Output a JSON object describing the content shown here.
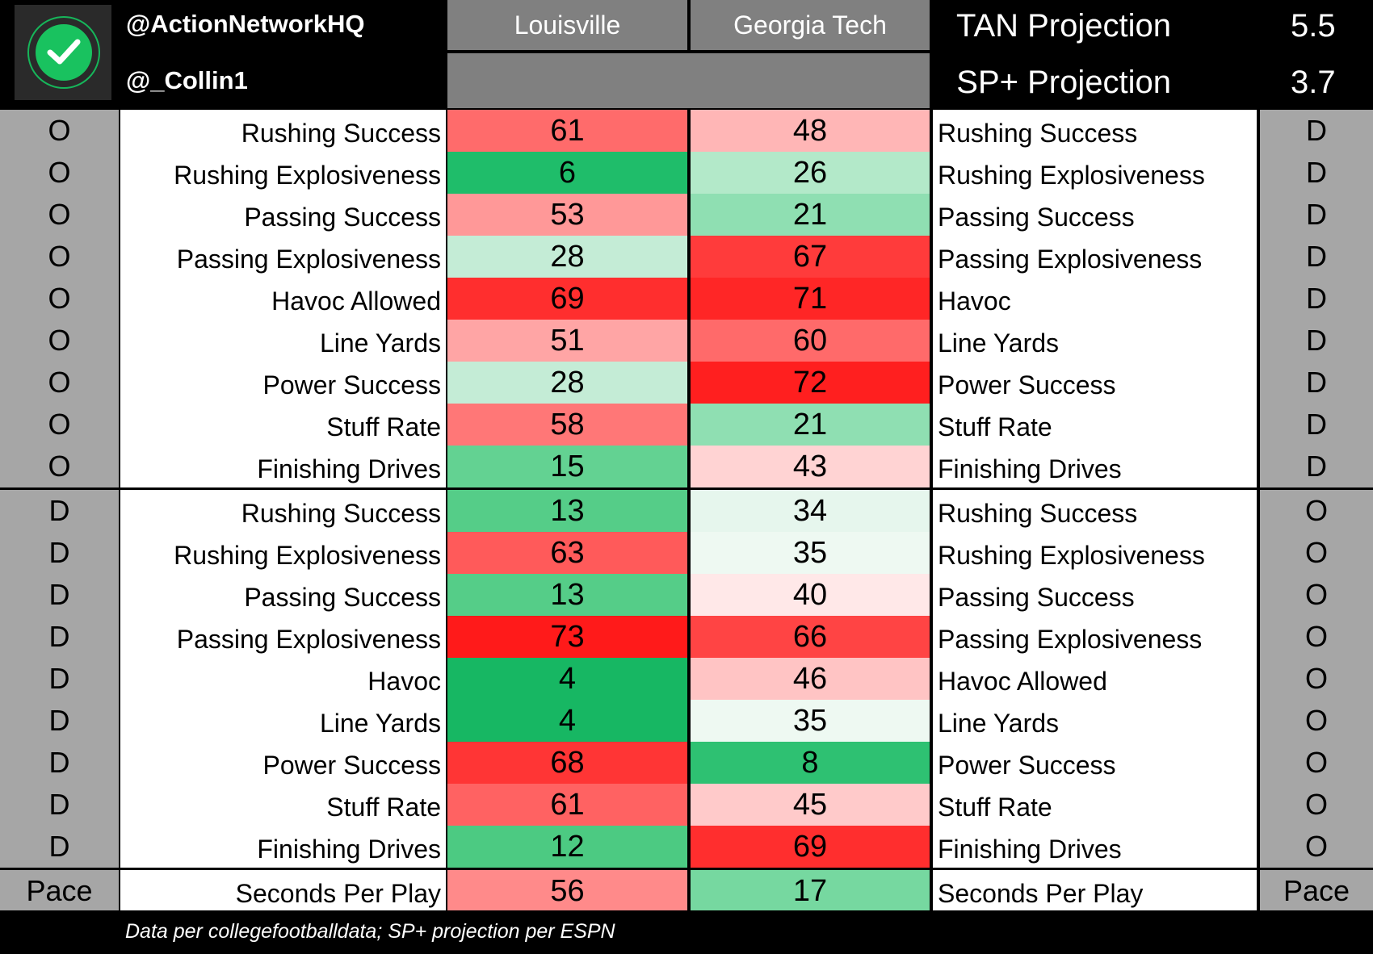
{
  "header": {
    "handle_primary": "@ActionNetworkHQ",
    "handle_secondary": "@_Collin1",
    "team_left": "Louisville",
    "team_right": "Georgia Tech",
    "tan_label": "TAN Projection",
    "tan_value": "5.5",
    "sp_label": "SP+ Projection",
    "sp_value": "3.7",
    "logo_icon": "check-circle-icon",
    "brand_color": "#19c25f"
  },
  "rows": [
    {
      "left_side": "O",
      "left_label": "Rushing Success",
      "left_value": "61",
      "left_color": "#ff6b6b",
      "right_value": "48",
      "right_color": "#ffb6b6",
      "right_label": "Rushing Success",
      "right_side": "D"
    },
    {
      "left_side": "O",
      "left_label": "Rushing Explosiveness",
      "left_value": "6",
      "left_color": "#1fbd6a",
      "right_value": "26",
      "right_color": "#b3e9c9",
      "right_label": "Rushing Explosiveness",
      "right_side": "D"
    },
    {
      "left_side": "O",
      "left_label": "Passing Success",
      "left_value": "53",
      "left_color": "#ff9898",
      "right_value": "21",
      "right_color": "#8fdfb2",
      "right_label": "Passing Success",
      "right_side": "D"
    },
    {
      "left_side": "O",
      "left_label": "Passing Explosiveness",
      "left_value": "28",
      "left_color": "#c4ecd6",
      "right_value": "67",
      "right_color": "#ff3b3b",
      "right_label": "Passing Explosiveness",
      "right_side": "D"
    },
    {
      "left_side": "O",
      "left_label": "Havoc Allowed",
      "left_value": "69",
      "left_color": "#ff2e2e",
      "right_value": "71",
      "right_color": "#ff2626",
      "right_label": "Havoc",
      "right_side": "D"
    },
    {
      "left_side": "O",
      "left_label": "Line Yards",
      "left_value": "51",
      "left_color": "#ffa5a5",
      "right_value": "60",
      "right_color": "#ff6a6a",
      "right_label": "Line Yards",
      "right_side": "D"
    },
    {
      "left_side": "O",
      "left_label": "Power Success",
      "left_value": "28",
      "left_color": "#c4ecd6",
      "right_value": "72",
      "right_color": "#ff1f1f",
      "right_label": "Power Success",
      "right_side": "D"
    },
    {
      "left_side": "O",
      "left_label": "Stuff Rate",
      "left_value": "58",
      "left_color": "#ff7777",
      "right_value": "21",
      "right_color": "#8fdfb2",
      "right_label": "Stuff Rate",
      "right_side": "D"
    },
    {
      "left_side": "O",
      "left_label": "Finishing Drives",
      "left_value": "15",
      "left_color": "#63d292",
      "right_value": "43",
      "right_color": "#ffd3d3",
      "right_label": "Finishing Drives",
      "right_side": "D"
    },
    {
      "left_side": "D",
      "left_label": "Rushing Success",
      "left_value": "13",
      "left_color": "#55cd88",
      "right_value": "34",
      "right_color": "#e6f6ed",
      "right_label": "Rushing Success",
      "right_side": "O"
    },
    {
      "left_side": "D",
      "left_label": "Rushing Explosiveness",
      "left_value": "63",
      "left_color": "#ff5a5a",
      "right_value": "35",
      "right_color": "#eef9f2",
      "right_label": "Rushing Explosiveness",
      "right_side": "O"
    },
    {
      "left_side": "D",
      "left_label": "Passing Success",
      "left_value": "13",
      "left_color": "#55cd88",
      "right_value": "40",
      "right_color": "#ffe8e8",
      "right_label": "Passing Success",
      "right_side": "O"
    },
    {
      "left_side": "D",
      "left_label": "Passing Explosiveness",
      "left_value": "73",
      "left_color": "#ff1a1a",
      "right_value": "66",
      "right_color": "#ff4444",
      "right_label": "Passing Explosiveness",
      "right_side": "O"
    },
    {
      "left_side": "D",
      "left_label": "Havoc",
      "left_value": "4",
      "left_color": "#17b763",
      "right_value": "46",
      "right_color": "#ffc4c4",
      "right_label": "Havoc Allowed",
      "right_side": "O"
    },
    {
      "left_side": "D",
      "left_label": "Line Yards",
      "left_value": "4",
      "left_color": "#17b763",
      "right_value": "35",
      "right_color": "#eef9f2",
      "right_label": "Line Yards",
      "right_side": "O"
    },
    {
      "left_side": "D",
      "left_label": "Power Success",
      "left_value": "68",
      "left_color": "#ff3535",
      "right_value": "8",
      "right_color": "#2ec172",
      "right_label": "Power Success",
      "right_side": "O"
    },
    {
      "left_side": "D",
      "left_label": "Stuff Rate",
      "left_value": "61",
      "left_color": "#ff6262",
      "right_value": "45",
      "right_color": "#ffcaca",
      "right_label": "Stuff Rate",
      "right_side": "O"
    },
    {
      "left_side": "D",
      "left_label": "Finishing Drives",
      "left_value": "12",
      "left_color": "#4cca82",
      "right_value": "69",
      "right_color": "#ff2e2e",
      "right_label": "Finishing Drives",
      "right_side": "O"
    },
    {
      "left_side": "Pace",
      "left_label": "Seconds Per Play",
      "left_value": "56",
      "left_color": "#ff8a8a",
      "right_value": "17",
      "right_color": "#76d8a0",
      "right_label": "Seconds Per Play",
      "right_side": "Pace"
    }
  ],
  "footer": {
    "note": "Data per collegefootballdata; SP+ projection per ESPN"
  }
}
